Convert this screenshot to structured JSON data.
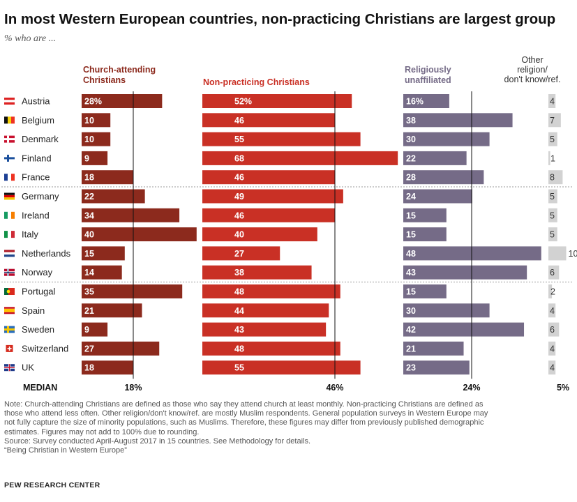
{
  "title": "In most Western European countries, non-practicing Christians are largest group",
  "subtitle": "% who are ...",
  "chart_data": {
    "type": "bar",
    "categories": [
      "Austria",
      "Belgium",
      "Denmark",
      "Finland",
      "France",
      "Germany",
      "Ireland",
      "Italy",
      "Netherlands",
      "Norway",
      "Portugal",
      "Spain",
      "Sweden",
      "Switzerland",
      "UK"
    ],
    "series": [
      {
        "name": "Church-attending Christians",
        "values": [
          28,
          10,
          10,
          9,
          18,
          22,
          34,
          40,
          15,
          14,
          35,
          21,
          9,
          27,
          18
        ],
        "labels": [
          "28%",
          "10",
          "10",
          "9",
          "18",
          "22",
          "34",
          "40",
          "15",
          "14",
          "35",
          "21",
          "9",
          "27",
          "18"
        ],
        "median": "18%",
        "color": "#8c2a1d"
      },
      {
        "name": "Non-practicing Christians",
        "values": [
          52,
          46,
          55,
          68,
          46,
          49,
          46,
          40,
          27,
          38,
          48,
          44,
          43,
          48,
          55
        ],
        "labels": [
          "52%",
          "46",
          "55",
          "68",
          "46",
          "49",
          "46",
          "40",
          "27",
          "38",
          "48",
          "44",
          "43",
          "48",
          "55"
        ],
        "median": "46%",
        "color": "#c93025"
      },
      {
        "name": "Religiously unaffiliated",
        "values": [
          16,
          38,
          30,
          22,
          28,
          24,
          15,
          15,
          48,
          43,
          15,
          30,
          42,
          21,
          23
        ],
        "labels": [
          "16%",
          "38",
          "30",
          "22",
          "28",
          "24",
          "15",
          "15",
          "48",
          "43",
          "15",
          "30",
          "42",
          "21",
          "23"
        ],
        "median": "24%",
        "color": "#756b87"
      },
      {
        "name": "Other religion/ don't know/ref.",
        "values": [
          4,
          7,
          5,
          1,
          8,
          5,
          5,
          5,
          10,
          6,
          2,
          4,
          6,
          4,
          4
        ],
        "labels": [
          "4",
          "7",
          "5",
          "1",
          "8",
          "5",
          "5",
          "5",
          "10",
          "6",
          "2",
          "4",
          "6",
          "4",
          "4"
        ],
        "median": "5%",
        "color": "#d2d2d2"
      }
    ],
    "header_lines": [
      [
        "Church-attending",
        "Christians"
      ],
      [
        "Non-practicing Christians"
      ],
      [
        "Religiously",
        "unaffiliated"
      ],
      [
        "Other",
        "religion/",
        "don't know/ref."
      ]
    ],
    "median_label": "MEDIAN",
    "groups": [
      [
        0,
        4
      ],
      [
        5,
        9
      ],
      [
        10,
        14
      ]
    ]
  },
  "flags": [
    "austria-flag",
    "belgium-flag",
    "denmark-flag",
    "finland-flag",
    "france-flag",
    "germany-flag",
    "ireland-flag",
    "italy-flag",
    "netherlands-flag",
    "norway-flag",
    "portugal-flag",
    "spain-flag",
    "sweden-flag",
    "switzerland-flag",
    "uk-flag"
  ],
  "note": {
    "lines": [
      "Note: Church-attending Christians are defined as those who say they attend church at least monthly. Non-practicing Christians are defined as",
      "those who attend less often. Other religion/don't know/ref. are mostly Muslim respondents. General population surveys in Western Europe may",
      "not fully capture the size of minority populations, such as Muslims. Therefore, these figures may differ from previously published demographic",
      "estimates. Figures may not add to 100% due to rounding.",
      "Source: Survey conducted April-August 2017 in 15 countries. See Methodology for details.",
      "“Being Christian in Western Europe”"
    ]
  },
  "source_org": "PEW RESEARCH CENTER"
}
